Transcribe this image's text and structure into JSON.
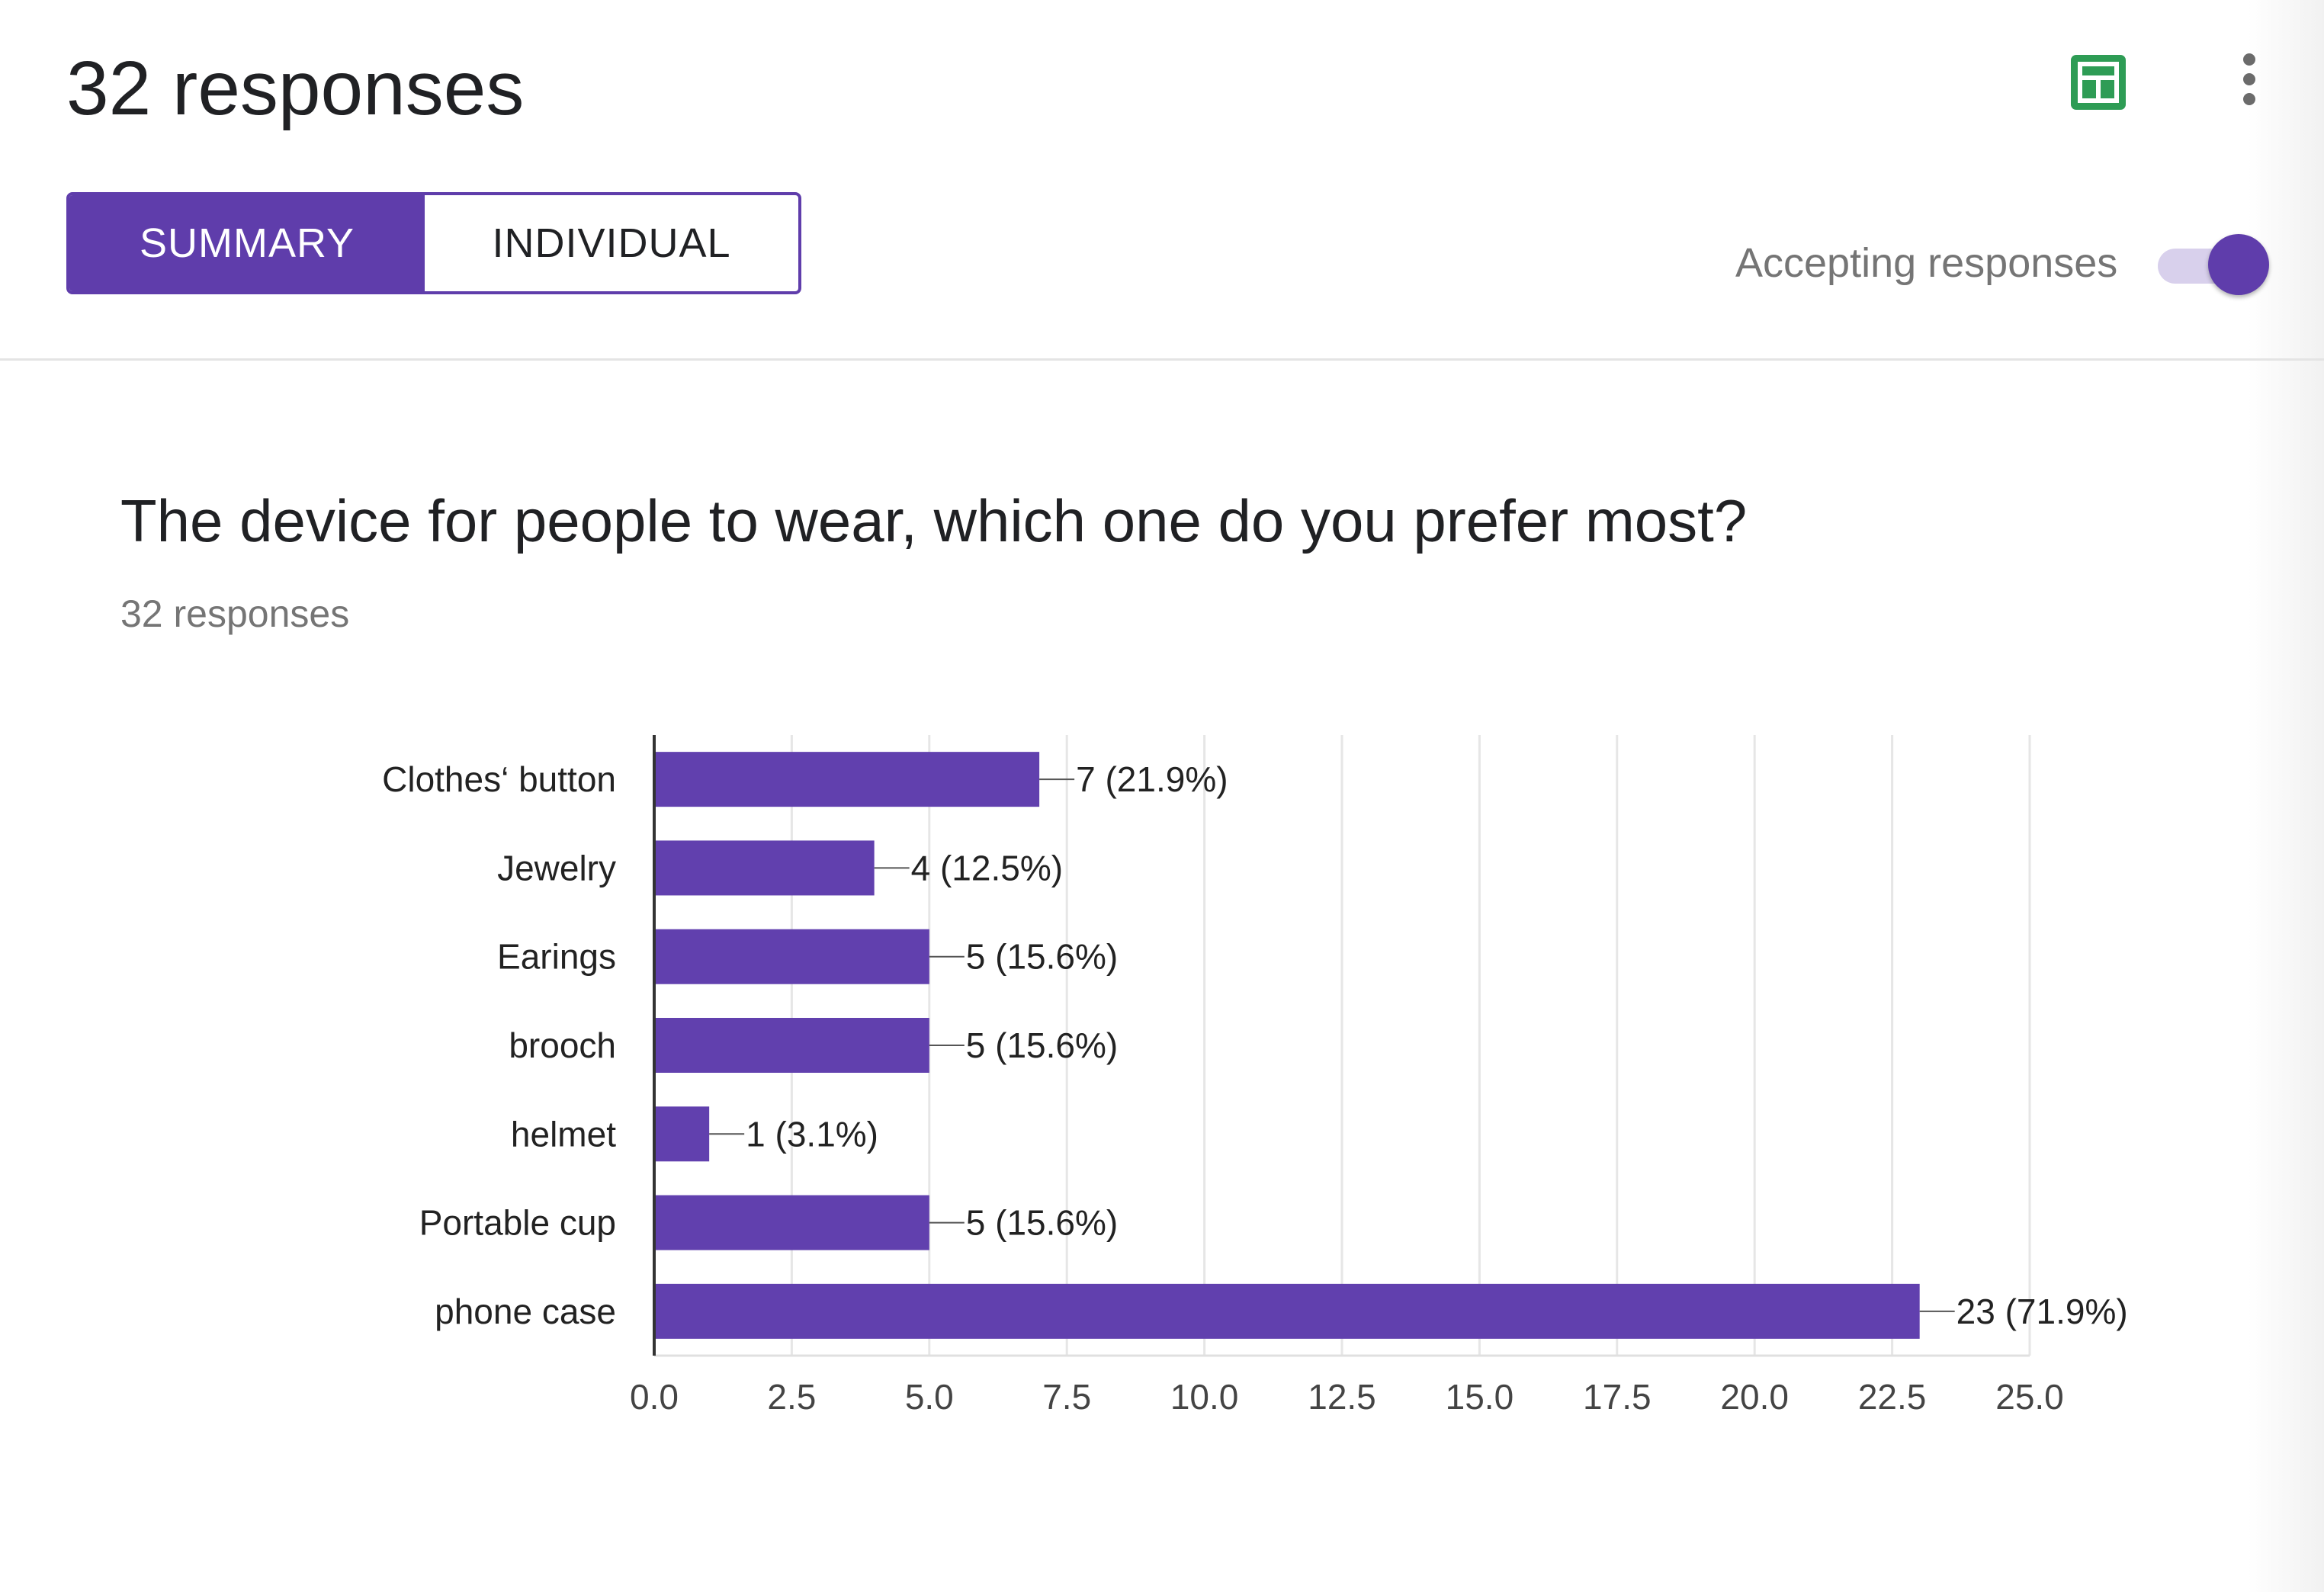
{
  "header": {
    "title": "32 responses",
    "sheets_icon": "google-sheets-icon",
    "more_icon": "more-vert-icon"
  },
  "tabs": [
    {
      "label": "SUMMARY",
      "active": true
    },
    {
      "label": "INDIVIDUAL",
      "active": false
    }
  ],
  "accepting": {
    "label": "Accepting responses",
    "on": true
  },
  "question": {
    "title": "The device for people to wear, which one do you prefer most?",
    "count": "32 responses"
  },
  "colors": {
    "accent": "#5f3dab",
    "bar": "#6140ae",
    "sheets_green": "#2e9c55"
  },
  "chart_data": {
    "type": "bar",
    "orientation": "horizontal",
    "categories": [
      "Clothes‘ button",
      "Jewelry",
      "Earings",
      "brooch",
      "helmet",
      "Portable cup",
      "phone case"
    ],
    "values": [
      7,
      4,
      5,
      5,
      1,
      5,
      23
    ],
    "data_labels": [
      "7 (21.9%)",
      "4 (12.5%)",
      "5 (15.6%)",
      "5 (15.6%)",
      "1 (3.1%)",
      "5 (15.6%)",
      "23 (71.9%)"
    ],
    "xlim": [
      0,
      25
    ],
    "xticks": [
      "0.0",
      "2.5",
      "5.0",
      "7.5",
      "10.0",
      "12.5",
      "15.0",
      "17.5",
      "20.0",
      "22.5",
      "25.0"
    ],
    "grid": true,
    "legend": "none"
  }
}
